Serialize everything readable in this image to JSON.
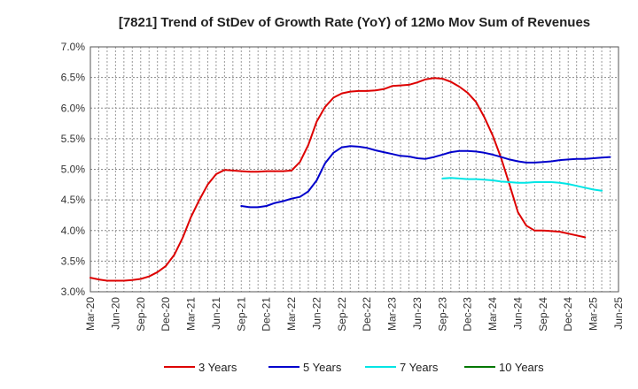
{
  "chart_data": {
    "type": "line",
    "title": "[7821]  Trend of StDev of Growth Rate (YoY) of 12Mo Mov Sum of Revenues",
    "xlabel": "",
    "ylabel": "",
    "ylim": [
      3.0,
      7.0
    ],
    "y_ticks": [
      3.0,
      3.5,
      4.0,
      4.5,
      5.0,
      5.5,
      6.0,
      6.5,
      7.0
    ],
    "y_tick_labels": [
      "3.0%",
      "3.5%",
      "4.0%",
      "4.5%",
      "5.0%",
      "5.5%",
      "6.0%",
      "6.5%",
      "7.0%"
    ],
    "x_tick_labels": [
      "Mar-20",
      "Jun-20",
      "Sep-20",
      "Dec-20",
      "Mar-21",
      "Jun-21",
      "Sep-21",
      "Dec-21",
      "Mar-22",
      "Jun-22",
      "Sep-22",
      "Dec-22",
      "Mar-23",
      "Jun-23",
      "Sep-23",
      "Dec-23",
      "Mar-24",
      "Jun-24",
      "Sep-24",
      "Dec-24",
      "Mar-25",
      "Jun-25"
    ],
    "x_range_months": [
      0,
      63
    ],
    "grid": true,
    "legend_position": "bottom",
    "series": [
      {
        "name": "3 Years",
        "color": "#dd0000",
        "start_month": 0,
        "values": [
          3.23,
          3.2,
          3.18,
          3.18,
          3.18,
          3.19,
          3.21,
          3.25,
          3.32,
          3.42,
          3.6,
          3.88,
          4.22,
          4.5,
          4.75,
          4.92,
          4.99,
          4.98,
          4.97,
          4.96,
          4.96,
          4.97,
          4.97,
          4.97,
          4.98,
          5.12,
          5.4,
          5.78,
          6.02,
          6.17,
          6.24,
          6.27,
          6.28,
          6.28,
          6.29,
          6.31,
          6.36,
          6.37,
          6.38,
          6.42,
          6.47,
          6.49,
          6.48,
          6.43,
          6.35,
          6.25,
          6.1,
          5.85,
          5.55,
          5.18,
          4.75,
          4.3,
          4.08,
          4.0,
          4.0,
          3.99,
          3.98,
          3.95,
          3.92,
          3.89
        ]
      },
      {
        "name": "5 Years",
        "color": "#0000cc",
        "start_month": 18,
        "values": [
          4.4,
          4.38,
          4.38,
          4.4,
          4.45,
          4.48,
          4.52,
          4.55,
          4.64,
          4.82,
          5.1,
          5.27,
          5.36,
          5.38,
          5.37,
          5.35,
          5.31,
          5.28,
          5.25,
          5.22,
          5.21,
          5.18,
          5.17,
          5.2,
          5.24,
          5.28,
          5.3,
          5.3,
          5.29,
          5.27,
          5.24,
          5.2,
          5.16,
          5.13,
          5.11,
          5.11,
          5.12,
          5.13,
          5.15,
          5.16,
          5.17,
          5.17,
          5.18,
          5.19,
          5.2
        ]
      },
      {
        "name": "7 Years",
        "color": "#00e5e5",
        "start_month": 42,
        "values": [
          4.85,
          4.86,
          4.85,
          4.84,
          4.84,
          4.83,
          4.82,
          4.8,
          4.79,
          4.78,
          4.78,
          4.79,
          4.79,
          4.79,
          4.78,
          4.76,
          4.73,
          4.7,
          4.67,
          4.65
        ]
      },
      {
        "name": "10 Years",
        "color": "#007700",
        "start_month": 0,
        "values": []
      }
    ]
  }
}
